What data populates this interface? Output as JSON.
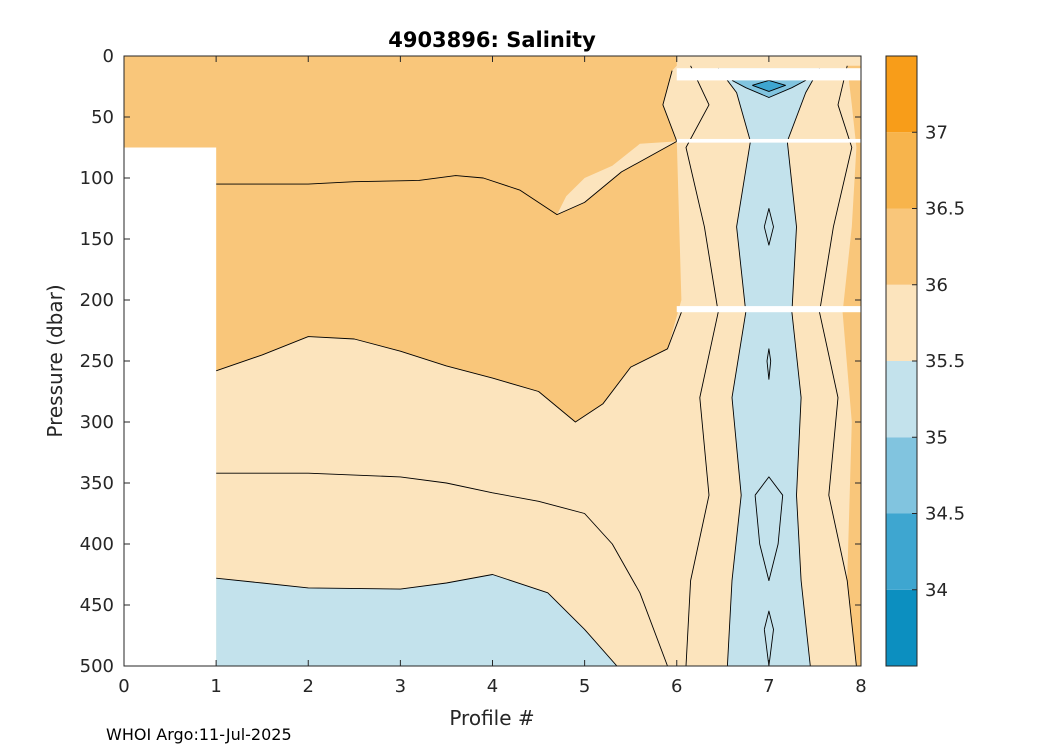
{
  "chart_data": {
    "type": "contour",
    "title": "4903896:  Salinity",
    "xlabel": "Profile #",
    "ylabel": "Pressure (dbar)",
    "xlim": [
      0,
      8
    ],
    "ylim": [
      500,
      0
    ],
    "y_reversed": true,
    "xticks": [
      0,
      1,
      2,
      3,
      4,
      5,
      6,
      7,
      8
    ],
    "yticks": [
      0,
      50,
      100,
      150,
      200,
      250,
      300,
      350,
      400,
      450,
      500
    ],
    "colorbar": {
      "range": [
        33.5,
        37.5
      ],
      "levels": [
        {
          "lo": 33.5,
          "hi": 34.0,
          "color": "#0c8fc0"
        },
        {
          "lo": 34.0,
          "hi": 34.5,
          "color": "#3ea6d0"
        },
        {
          "lo": 34.5,
          "hi": 35.0,
          "color": "#81c4df"
        },
        {
          "lo": 35.0,
          "hi": 35.5,
          "color": "#c3e2ec"
        },
        {
          "lo": 35.5,
          "hi": 36.0,
          "color": "#fce4bd"
        },
        {
          "lo": 36.0,
          "hi": 36.5,
          "color": "#f9c67a"
        },
        {
          "lo": 36.5,
          "hi": 37.0,
          "color": "#f7b44c"
        },
        {
          "lo": 37.0,
          "hi": 37.5,
          "color": "#f89d19"
        }
      ],
      "tick_values": [
        34,
        34.5,
        35,
        35.5,
        36,
        36.5,
        37
      ],
      "tick_labels": [
        "34",
        "34.5",
        "35",
        "35.5",
        "36",
        "36.5",
        "37"
      ]
    },
    "regions": [
      {
        "name": "upper-36-to-36.5",
        "color": "#f9c67a",
        "polygon": [
          [
            0,
            0
          ],
          [
            6,
            0
          ],
          [
            6,
            8
          ],
          [
            5.95,
            12
          ],
          [
            5.85,
            40
          ],
          [
            6.0,
            70
          ],
          [
            5.6,
            72
          ],
          [
            5.3,
            90
          ],
          [
            5.0,
            100
          ],
          [
            4.8,
            115
          ],
          [
            4.7,
            130
          ],
          [
            4.3,
            110
          ],
          [
            3.9,
            100
          ],
          [
            3.6,
            98
          ],
          [
            3.2,
            102
          ],
          [
            2.5,
            103
          ],
          [
            2.0,
            105
          ],
          [
            1.5,
            105
          ],
          [
            1.0,
            105
          ],
          [
            1.0,
            75
          ],
          [
            0,
            75
          ]
        ]
      },
      {
        "name": "mid-36-to-36.5",
        "color": "#f9c67a",
        "polygon": [
          [
            1.0,
            105
          ],
          [
            2.0,
            105
          ],
          [
            2.5,
            103
          ],
          [
            3.2,
            102
          ],
          [
            3.6,
            98
          ],
          [
            3.9,
            100
          ],
          [
            4.3,
            110
          ],
          [
            4.7,
            130
          ],
          [
            5.0,
            120
          ],
          [
            5.4,
            95
          ],
          [
            6.0,
            70
          ],
          [
            6.05,
            200
          ],
          [
            5.9,
            240
          ],
          [
            5.5,
            255
          ],
          [
            5.2,
            285
          ],
          [
            4.9,
            300
          ],
          [
            4.5,
            275
          ],
          [
            4.0,
            264
          ],
          [
            3.5,
            254
          ],
          [
            3.0,
            242
          ],
          [
            2.5,
            232
          ],
          [
            2.0,
            230
          ],
          [
            1.5,
            245
          ],
          [
            1.0,
            258
          ]
        ]
      },
      {
        "name": "lower-35.5-to-36",
        "color": "#fce4bd",
        "polygon": [
          [
            1.0,
            258
          ],
          [
            1.5,
            245
          ],
          [
            2.0,
            230
          ],
          [
            2.5,
            232
          ],
          [
            3.0,
            242
          ],
          [
            3.5,
            254
          ],
          [
            4.0,
            264
          ],
          [
            4.5,
            275
          ],
          [
            4.9,
            300
          ],
          [
            5.2,
            285
          ],
          [
            5.5,
            255
          ],
          [
            5.9,
            240
          ],
          [
            6.05,
            210
          ],
          [
            6.05,
            500
          ],
          [
            5.9,
            500
          ],
          [
            5.6,
            440
          ],
          [
            5.3,
            400
          ],
          [
            5.0,
            375
          ],
          [
            4.5,
            365
          ],
          [
            4.0,
            358
          ],
          [
            3.5,
            350
          ],
          [
            3.0,
            345
          ],
          [
            2.0,
            342
          ],
          [
            1.0,
            342
          ]
        ]
      },
      {
        "name": "lower-35.5-to-36-b",
        "color": "#fce4bd",
        "polygon": [
          [
            1.0,
            342
          ],
          [
            2.0,
            342
          ],
          [
            3.0,
            345
          ],
          [
            3.5,
            350
          ],
          [
            4.0,
            358
          ],
          [
            4.5,
            365
          ],
          [
            5.0,
            375
          ],
          [
            5.3,
            400
          ],
          [
            5.6,
            440
          ],
          [
            5.9,
            500
          ],
          [
            5.35,
            500
          ],
          [
            5.0,
            470
          ],
          [
            4.6,
            440
          ],
          [
            4.0,
            425
          ],
          [
            3.5,
            432
          ],
          [
            3.0,
            437
          ],
          [
            2.0,
            436
          ],
          [
            1.5,
            432
          ],
          [
            1.0,
            428
          ]
        ]
      },
      {
        "name": "bottom-35-to-35.5",
        "color": "#c3e2ec",
        "polygon": [
          [
            1.0,
            428
          ],
          [
            1.5,
            432
          ],
          [
            2.0,
            436
          ],
          [
            3.0,
            437
          ],
          [
            3.5,
            432
          ],
          [
            4.0,
            425
          ],
          [
            4.6,
            440
          ],
          [
            5.0,
            470
          ],
          [
            5.35,
            500
          ],
          [
            1.0,
            500
          ]
        ]
      },
      {
        "name": "col-band-35.5-to-36",
        "color": "#fce4bd",
        "polygon": [
          [
            6.15,
            8
          ],
          [
            6.35,
            40
          ],
          [
            6.1,
            75
          ],
          [
            6.3,
            140
          ],
          [
            6.45,
            210
          ],
          [
            6.25,
            280
          ],
          [
            6.35,
            360
          ],
          [
            6.15,
            430
          ],
          [
            6.1,
            500
          ],
          [
            7.95,
            500
          ],
          [
            7.85,
            430
          ],
          [
            7.65,
            360
          ],
          [
            7.75,
            280
          ],
          [
            7.55,
            210
          ],
          [
            7.7,
            140
          ],
          [
            7.9,
            75
          ],
          [
            7.75,
            40
          ],
          [
            7.85,
            8
          ]
        ]
      },
      {
        "name": "col-band-36-to-36.5-right",
        "color": "#f9c67a",
        "polygon": [
          [
            7.85,
            8
          ],
          [
            8,
            8
          ],
          [
            8,
            500
          ],
          [
            7.95,
            500
          ],
          [
            7.85,
            430
          ],
          [
            7.9,
            300
          ],
          [
            7.8,
            210
          ],
          [
            7.9,
            140
          ],
          [
            7.95,
            75
          ],
          [
            7.9,
            40
          ]
        ]
      },
      {
        "name": "col-band-35-to-35.5",
        "color": "#c3e2ec",
        "polygon": [
          [
            6.45,
            10
          ],
          [
            6.65,
            30
          ],
          [
            6.8,
            70
          ],
          [
            6.65,
            140
          ],
          [
            6.75,
            210
          ],
          [
            6.6,
            280
          ],
          [
            6.7,
            360
          ],
          [
            6.6,
            430
          ],
          [
            6.55,
            500
          ],
          [
            7.45,
            500
          ],
          [
            7.35,
            430
          ],
          [
            7.3,
            360
          ],
          [
            7.35,
            280
          ],
          [
            7.25,
            210
          ],
          [
            7.3,
            140
          ],
          [
            7.2,
            70
          ],
          [
            7.4,
            30
          ],
          [
            7.55,
            10
          ]
        ]
      },
      {
        "name": "col-core-34.5-to-35",
        "color": "#81c4df",
        "polygon": [
          [
            6.6,
            20
          ],
          [
            6.75,
            26
          ],
          [
            7.0,
            34
          ],
          [
            7.25,
            26
          ],
          [
            7.4,
            20
          ],
          [
            7.2,
            15
          ],
          [
            7.0,
            12
          ],
          [
            6.8,
            15
          ]
        ]
      },
      {
        "name": "col-core-34-to-34.5",
        "color": "#3ea6d0",
        "polygon": [
          [
            6.82,
            24
          ],
          [
            7.0,
            29
          ],
          [
            7.18,
            24
          ],
          [
            7.0,
            20
          ]
        ]
      }
    ],
    "contour_lines": [
      [
        [
          1.0,
          105
        ],
        [
          1.5,
          105
        ],
        [
          2.0,
          105
        ],
        [
          2.5,
          103
        ],
        [
          3.2,
          102
        ],
        [
          3.6,
          98
        ],
        [
          3.9,
          100
        ],
        [
          4.3,
          110
        ],
        [
          4.7,
          130
        ],
        [
          5.0,
          120
        ],
        [
          5.4,
          95
        ],
        [
          6.0,
          70
        ]
      ],
      [
        [
          1.0,
          258
        ],
        [
          1.5,
          245
        ],
        [
          2.0,
          230
        ],
        [
          2.5,
          232
        ],
        [
          3.0,
          242
        ],
        [
          3.5,
          254
        ],
        [
          4.0,
          264
        ],
        [
          4.5,
          275
        ],
        [
          4.9,
          300
        ],
        [
          5.2,
          285
        ],
        [
          5.5,
          255
        ],
        [
          5.9,
          240
        ],
        [
          6.05,
          210
        ]
      ],
      [
        [
          1.0,
          342
        ],
        [
          2.0,
          342
        ],
        [
          3.0,
          345
        ],
        [
          3.5,
          350
        ],
        [
          4.0,
          358
        ],
        [
          4.5,
          365
        ],
        [
          5.0,
          375
        ],
        [
          5.3,
          400
        ],
        [
          5.6,
          440
        ],
        [
          5.9,
          500
        ]
      ],
      [
        [
          1.0,
          428
        ],
        [
          1.5,
          432
        ],
        [
          2.0,
          436
        ],
        [
          3.0,
          437
        ],
        [
          3.5,
          432
        ],
        [
          4.0,
          425
        ],
        [
          4.6,
          440
        ],
        [
          5.0,
          470
        ],
        [
          5.35,
          500
        ]
      ],
      [
        [
          5.95,
          12
        ],
        [
          5.85,
          40
        ],
        [
          6.0,
          70
        ]
      ],
      [
        [
          6.15,
          8
        ],
        [
          6.35,
          40
        ],
        [
          6.1,
          75
        ],
        [
          6.3,
          140
        ],
        [
          6.45,
          210
        ],
        [
          6.25,
          280
        ],
        [
          6.35,
          360
        ],
        [
          6.15,
          430
        ],
        [
          6.1,
          500
        ]
      ],
      [
        [
          6.45,
          10
        ],
        [
          6.65,
          30
        ],
        [
          6.8,
          70
        ],
        [
          6.65,
          140
        ],
        [
          6.75,
          210
        ],
        [
          6.6,
          280
        ],
        [
          6.7,
          360
        ],
        [
          6.6,
          430
        ],
        [
          6.55,
          500
        ]
      ],
      [
        [
          7.55,
          10
        ],
        [
          7.4,
          30
        ],
        [
          7.2,
          70
        ],
        [
          7.3,
          140
        ],
        [
          7.25,
          210
        ],
        [
          7.35,
          280
        ],
        [
          7.3,
          360
        ],
        [
          7.35,
          430
        ],
        [
          7.45,
          500
        ]
      ],
      [
        [
          7.85,
          8
        ],
        [
          7.75,
          40
        ],
        [
          7.9,
          75
        ],
        [
          7.7,
          140
        ],
        [
          7.55,
          210
        ],
        [
          7.75,
          280
        ],
        [
          7.65,
          360
        ],
        [
          7.85,
          430
        ],
        [
          7.95,
          500
        ]
      ],
      [
        [
          6.6,
          20
        ],
        [
          6.75,
          26
        ],
        [
          7.0,
          34
        ],
        [
          7.25,
          26
        ],
        [
          7.4,
          20
        ],
        [
          7.2,
          15
        ],
        [
          7.0,
          12
        ],
        [
          6.8,
          15
        ],
        [
          6.6,
          20
        ]
      ],
      [
        [
          6.82,
          24
        ],
        [
          7.0,
          29
        ],
        [
          7.18,
          24
        ],
        [
          7.0,
          20
        ],
        [
          6.82,
          24
        ]
      ],
      [
        [
          6.95,
          140
        ],
        [
          7.0,
          155
        ],
        [
          7.05,
          140
        ],
        [
          7.0,
          125
        ],
        [
          6.95,
          140
        ]
      ],
      [
        [
          6.85,
          360
        ],
        [
          7.0,
          345
        ],
        [
          7.15,
          360
        ],
        [
          7.1,
          400
        ],
        [
          7.0,
          430
        ],
        [
          6.9,
          400
        ],
        [
          6.85,
          360
        ]
      ],
      [
        [
          6.98,
          250
        ],
        [
          7.0,
          265
        ],
        [
          7.02,
          250
        ],
        [
          7.0,
          240
        ],
        [
          6.98,
          250
        ]
      ],
      [
        [
          6.95,
          470
        ],
        [
          7.0,
          500
        ],
        [
          7.05,
          470
        ],
        [
          7.0,
          455
        ],
        [
          6.95,
          470
        ]
      ]
    ],
    "gaps": [
      {
        "x": [
          6.0,
          8.0
        ],
        "y": [
          10,
          20
        ]
      },
      {
        "x": [
          6.0,
          8.0
        ],
        "y": [
          68,
          71
        ]
      },
      {
        "x": [
          6.0,
          8.0
        ],
        "y": [
          205,
          210
        ]
      }
    ],
    "nodata": {
      "x": [
        0,
        1
      ],
      "y": [
        75,
        500
      ]
    }
  },
  "footer": "WHOI Argo:11-Jul-2025"
}
